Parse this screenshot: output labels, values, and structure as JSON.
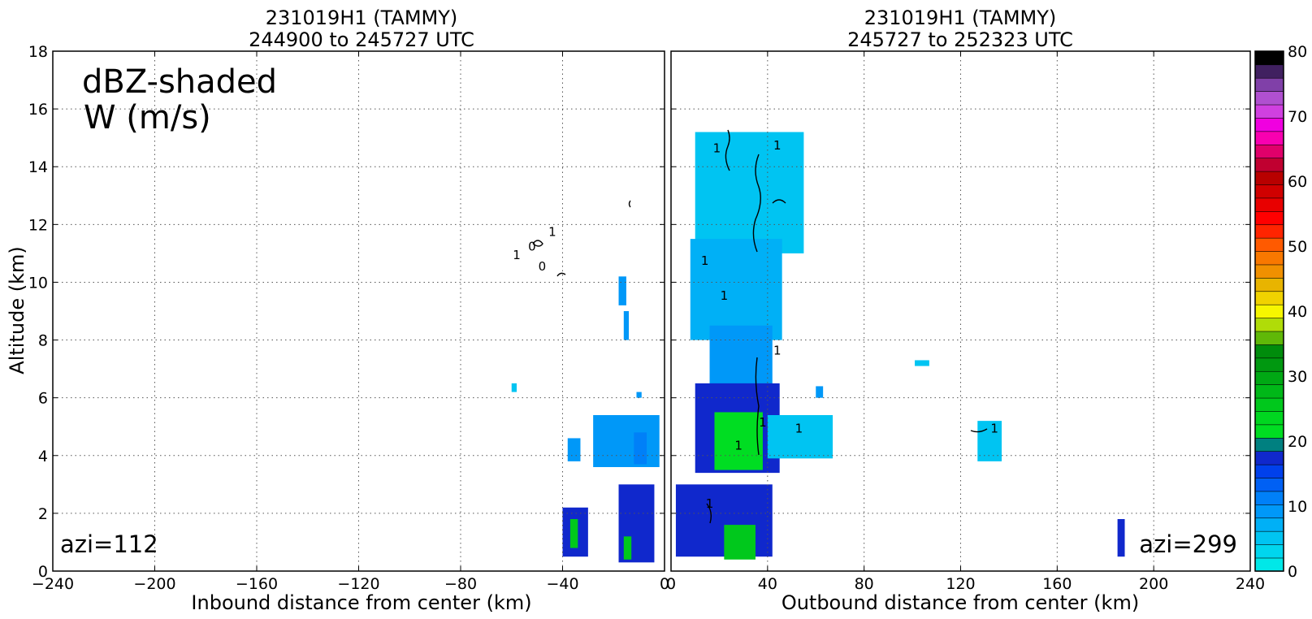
{
  "chart_data": [
    {
      "type": "heatmap",
      "title": "231019H1 (TAMMY)",
      "subtitle": "244900 to 245727 UTC",
      "xlabel": "Inbound distance from center (km)",
      "ylabel": "Altitude (km)",
      "xlim": [
        -240,
        0
      ],
      "ylim": [
        0,
        18
      ],
      "x_ticks": [
        -240,
        -200,
        -160,
        -120,
        -80,
        -40,
        0
      ],
      "x_tick_labels": [
        "−240",
        "−200",
        "−160",
        "−120",
        "−80",
        "−40",
        "0"
      ],
      "y_ticks": [
        0,
        2,
        4,
        6,
        8,
        10,
        12,
        14,
        16,
        18
      ],
      "grid": true,
      "annotations": [
        "dBZ-shaded",
        "W (m/s)",
        "azi=112"
      ],
      "contour_labels": [
        "1",
        "1",
        "0",
        "0"
      ],
      "echo_regions": [
        {
          "x": [
            -18,
            -15
          ],
          "y": [
            9.2,
            10.2
          ],
          "dbz": 10
        },
        {
          "x": [
            -16,
            -14
          ],
          "y": [
            8.0,
            9.0
          ],
          "dbz": 10
        },
        {
          "x": [
            -60,
            -58
          ],
          "y": [
            6.2,
            6.5
          ],
          "dbz": 5
        },
        {
          "x": [
            -11,
            -9
          ],
          "y": [
            6.0,
            6.2
          ],
          "dbz": 10
        },
        {
          "x": [
            -28,
            -2
          ],
          "y": [
            3.6,
            5.4
          ],
          "dbz": 10
        },
        {
          "x": [
            -12,
            -7
          ],
          "y": [
            3.7,
            4.8
          ],
          "dbz": 14
        },
        {
          "x": [
            -38,
            -33
          ],
          "y": [
            3.8,
            4.6
          ],
          "dbz": 12
        },
        {
          "x": [
            -40,
            -30
          ],
          "y": [
            0.5,
            2.2
          ],
          "dbz": 22
        },
        {
          "x": [
            -37,
            -34
          ],
          "y": [
            0.8,
            1.8
          ],
          "dbz": 32
        },
        {
          "x": [
            -18,
            -4
          ],
          "y": [
            0.3,
            3.0
          ],
          "dbz": 22
        },
        {
          "x": [
            -16,
            -13
          ],
          "y": [
            0.4,
            1.2
          ],
          "dbz": 32
        }
      ]
    },
    {
      "type": "heatmap",
      "title": "231019H1 (TAMMY)",
      "subtitle": "245727 to 252323 UTC",
      "xlabel": "Outbound distance from center (km)",
      "xlim": [
        0,
        240
      ],
      "ylim": [
        0,
        18
      ],
      "x_ticks": [
        0,
        40,
        80,
        120,
        160,
        200,
        240
      ],
      "x_tick_labels": [
        "0",
        "40",
        "80",
        "120",
        "160",
        "200",
        "240"
      ],
      "y_ticks": [
        0,
        2,
        4,
        6,
        8,
        10,
        12,
        14,
        16,
        18
      ],
      "grid": true,
      "annotations": [
        "azi=299"
      ],
      "contour_labels": [
        "1",
        "1",
        "1",
        "1",
        "1",
        "1",
        "1",
        "1",
        "1",
        "1"
      ],
      "echo_regions": [
        {
          "x": [
            10,
            55
          ],
          "y": [
            11.0,
            15.2
          ],
          "dbz": 5
        },
        {
          "x": [
            8,
            46
          ],
          "y": [
            8.0,
            11.5
          ],
          "dbz": 8
        },
        {
          "x": [
            16,
            42
          ],
          "y": [
            6.0,
            8.5
          ],
          "dbz": 12
        },
        {
          "x": [
            10,
            45
          ],
          "y": [
            3.4,
            6.5
          ],
          "dbz": 20
        },
        {
          "x": [
            18,
            38
          ],
          "y": [
            3.5,
            5.5
          ],
          "dbz": 26
        },
        {
          "x": [
            40,
            67
          ],
          "y": [
            3.9,
            5.4
          ],
          "dbz": 5
        },
        {
          "x": [
            60,
            63
          ],
          "y": [
            6.0,
            6.4
          ],
          "dbz": 10
        },
        {
          "x": [
            101,
            107
          ],
          "y": [
            7.1,
            7.3
          ],
          "dbz": 5
        },
        {
          "x": [
            127,
            137
          ],
          "y": [
            3.8,
            5.2
          ],
          "dbz": 5
        },
        {
          "x": [
            2,
            42
          ],
          "y": [
            0.5,
            3.0
          ],
          "dbz": 20
        },
        {
          "x": [
            22,
            35
          ],
          "y": [
            0.4,
            1.6
          ],
          "dbz": 30
        },
        {
          "x": [
            185,
            188
          ],
          "y": [
            0.5,
            1.8
          ],
          "dbz": 20
        }
      ]
    }
  ],
  "colorbar": {
    "ticks": [
      0,
      10,
      20,
      30,
      40,
      50,
      60,
      70,
      80
    ],
    "range": [
      0,
      80
    ],
    "step": 2.5,
    "colors": [
      "#00e8e8",
      "#00d6ee",
      "#00c4f2",
      "#00b0f6",
      "#0098f8",
      "#0080f8",
      "#0060f4",
      "#0040ec",
      "#1028cc",
      "#008080",
      "#00dd22",
      "#00d620",
      "#00c81c",
      "#00b818",
      "#00a814",
      "#009810",
      "#008c0c",
      "#60b808",
      "#b0dc08",
      "#f6f600",
      "#f0d200",
      "#e8b400",
      "#f09000",
      "#f87800",
      "#ff5a00",
      "#ff2400",
      "#ff0000",
      "#e80000",
      "#d00000",
      "#b80000",
      "#c00030",
      "#e0006a",
      "#f800b0",
      "#f000e0",
      "#d040e0",
      "#b050d0",
      "#8040a8",
      "#402060",
      "#000000"
    ]
  }
}
